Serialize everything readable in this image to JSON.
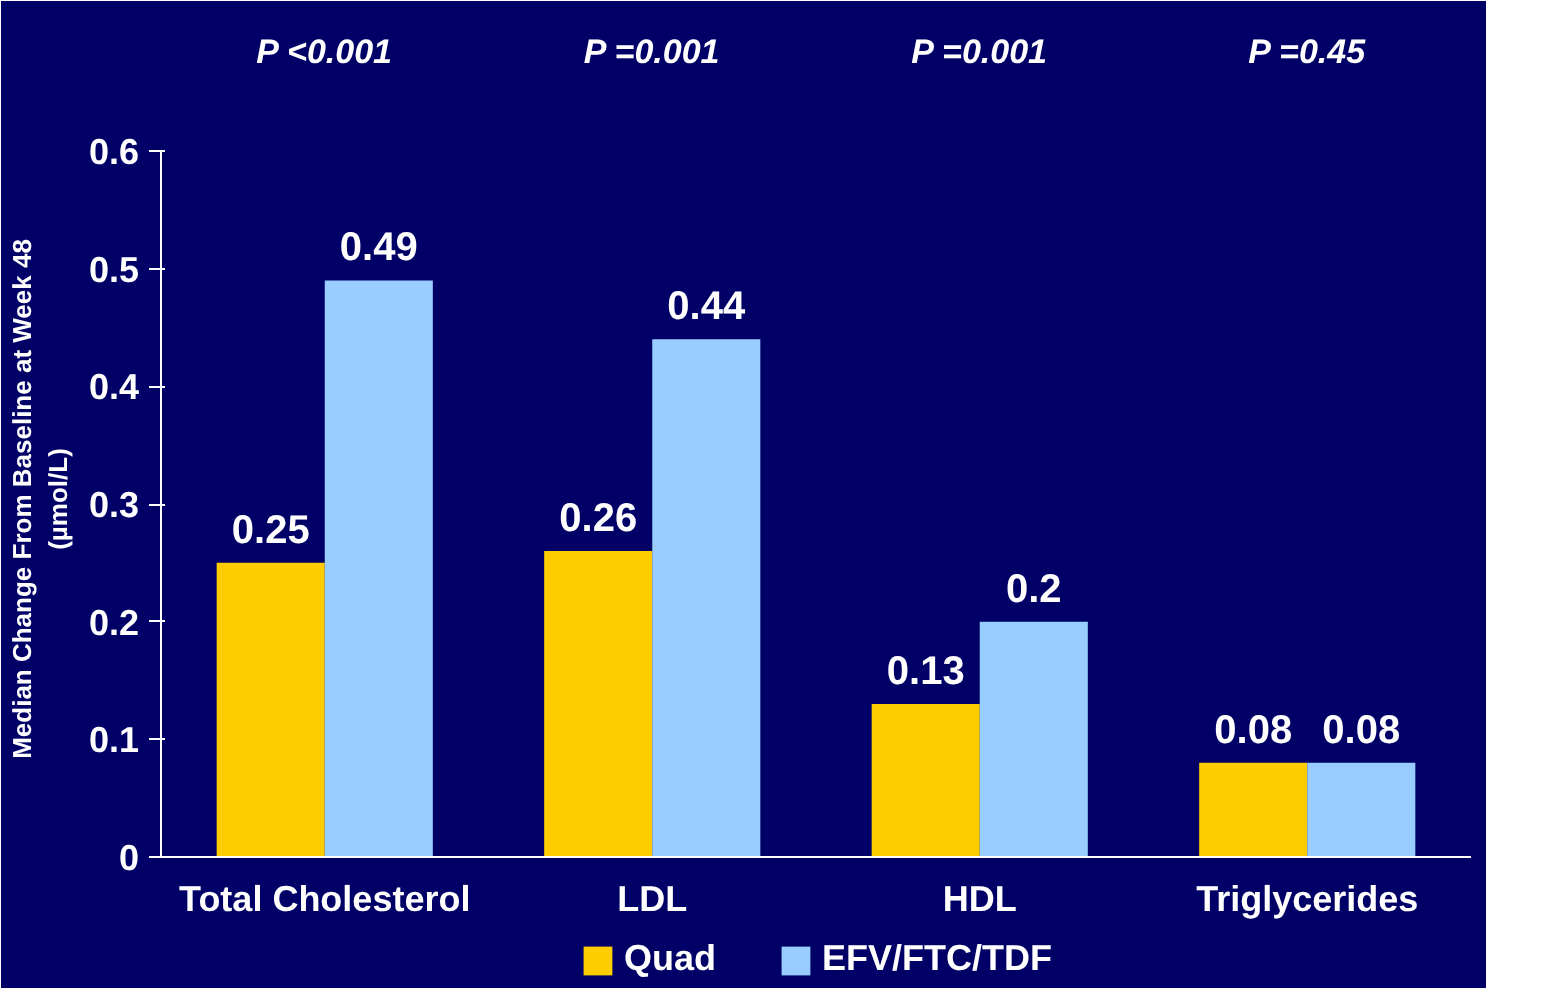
{
  "chart_data": {
    "type": "bar",
    "ylabel": "Median Change From Baseline at Week 48\n(µmol/L)",
    "categories": [
      "Total Cholesterol",
      "LDL",
      "HDL",
      "Triglycerides"
    ],
    "series": [
      {
        "name": "Quad",
        "color": "#ffcc00",
        "values": [
          0.25,
          0.26,
          0.13,
          0.08
        ]
      },
      {
        "name": "EFV/FTC/TDF",
        "color": "#99ccff",
        "values": [
          0.49,
          0.44,
          0.2,
          0.08
        ]
      }
    ],
    "ylim": [
      0,
      0.6
    ],
    "yticks": [
      0,
      0.1,
      0.2,
      0.3,
      0.4,
      0.5,
      0.6
    ],
    "data_labels": true,
    "grid": false,
    "legend": "bottom",
    "annotations": [
      "P <0.001",
      "P =0.001",
      "P =0.001",
      "P =0.45"
    ]
  }
}
